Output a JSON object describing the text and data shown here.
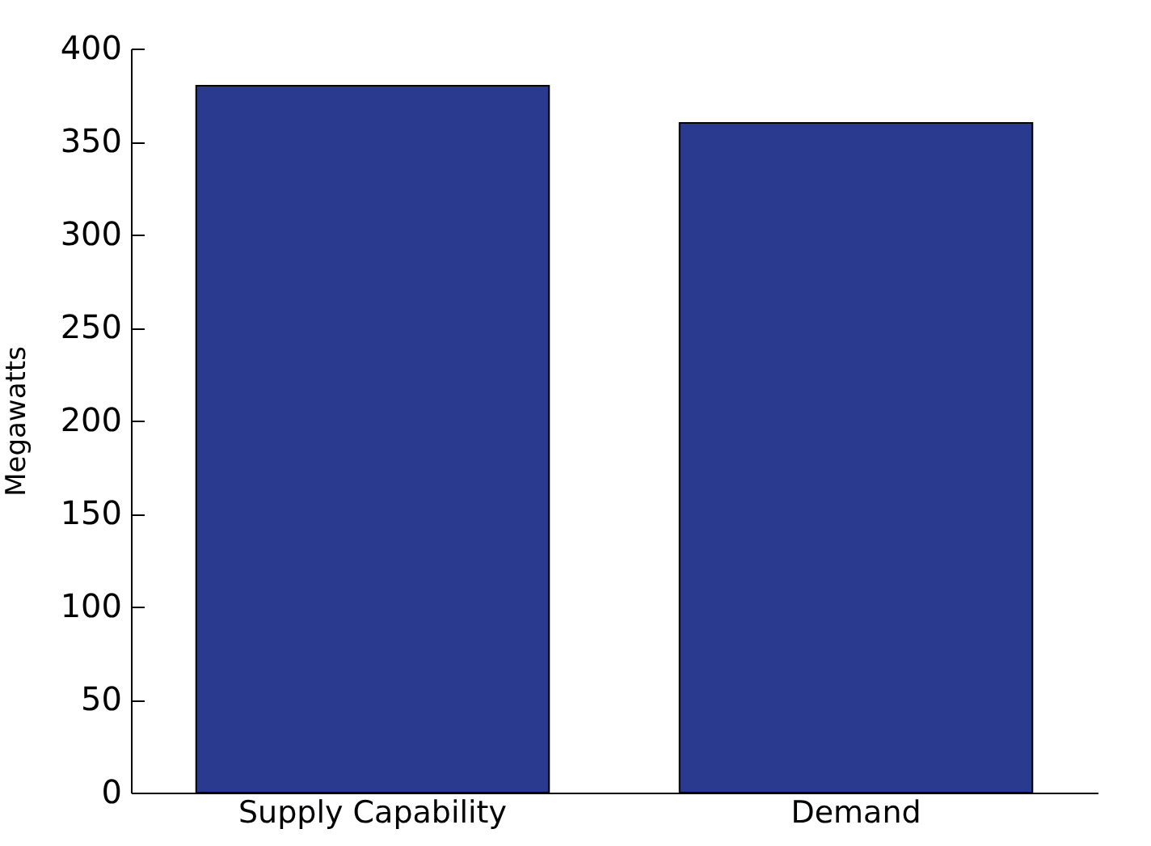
{
  "chart_data": {
    "type": "bar",
    "ylabel": "Megawatts",
    "categories": [
      "Supply Capability",
      "Demand"
    ],
    "values": [
      380,
      360
    ],
    "color": "#2a3a8f",
    "ylim": [
      0,
      400
    ],
    "yticks": [
      0,
      50,
      100,
      150,
      200,
      250,
      300,
      350,
      400
    ],
    "grid": false
  }
}
